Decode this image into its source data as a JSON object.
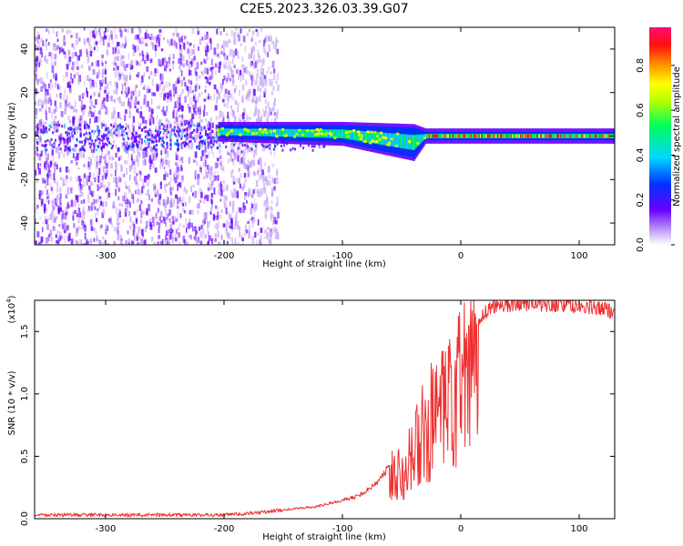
{
  "figure": {
    "title": "C2E5.2023.326.03.39.G07"
  },
  "chart_data": [
    {
      "type": "heatmap",
      "xlabel": "Height of straight line (km)",
      "ylabel": "Frequency (Hz)",
      "xlim": [
        -360,
        130
      ],
      "ylim": [
        -50,
        50
      ],
      "xticks": [
        -300,
        -200,
        -100,
        0,
        100
      ],
      "yticks": [
        -40,
        -20,
        0,
        20,
        40
      ],
      "colorbar": {
        "label": "Normalized spectral amplitude",
        "range": [
          0,
          0.97
        ],
        "ticks": [
          "0.0",
          "0.2",
          "0.4",
          "0.6",
          "0.8"
        ],
        "colors": [
          "#c6a8f5",
          "#6a00ff",
          "#0032ff",
          "#00d6ff",
          "#00ff5a",
          "#b4ff00",
          "#ffff00",
          "#ff9b00",
          "#ff1010",
          "#ff0a78"
        ]
      },
      "noise_region_x": [
        -360,
        -155
      ],
      "carrier_band": [
        {
          "x": -205,
          "f_center": 2,
          "half_width": 3
        },
        {
          "x": -100,
          "f_center": 1,
          "half_width": 4
        },
        {
          "x": -40,
          "f_center": -3,
          "half_width": 7
        },
        {
          "x": -30,
          "f_center": 0,
          "half_width": 2
        },
        {
          "x": 130,
          "f_center": 0,
          "half_width": 2
        }
      ]
    },
    {
      "type": "line",
      "xlabel": "Height of straight line (km)",
      "ylabel": "SNR (10 * v/v)",
      "y_scale_note": "(x10",
      "y_scale_exp": "4",
      "y_scale_close": ")",
      "xlim": [
        -360,
        130
      ],
      "ylim": [
        0,
        1.75
      ],
      "xticks": [
        -300,
        -200,
        -100,
        0,
        100
      ],
      "yticks": [
        "0.0",
        "0.5",
        "1.0",
        "1.5"
      ],
      "ytick_values": [
        0,
        0.5,
        1.0,
        1.5
      ],
      "color": "#ee3030",
      "series": [
        {
          "x": [
            -360,
            -300,
            -250,
            -200,
            -180,
            -160,
            -140,
            -120,
            -100,
            -90,
            -80,
            -70,
            -60,
            -50,
            -40,
            -35,
            -30,
            -25,
            -20,
            -15,
            -10,
            -5,
            0,
            5,
            10,
            20,
            30,
            40,
            60,
            80,
            100,
            120,
            130
          ],
          "values": [
            0.03,
            0.03,
            0.03,
            0.03,
            0.04,
            0.06,
            0.08,
            0.1,
            0.15,
            0.17,
            0.22,
            0.3,
            0.42,
            0.55,
            0.7,
            0.78,
            0.95,
            1.0,
            1.05,
            1.08,
            1.18,
            1.25,
            1.4,
            1.45,
            1.55,
            1.65,
            1.71,
            1.72,
            1.73,
            1.72,
            1.7,
            1.68,
            1.66
          ]
        }
      ]
    }
  ]
}
